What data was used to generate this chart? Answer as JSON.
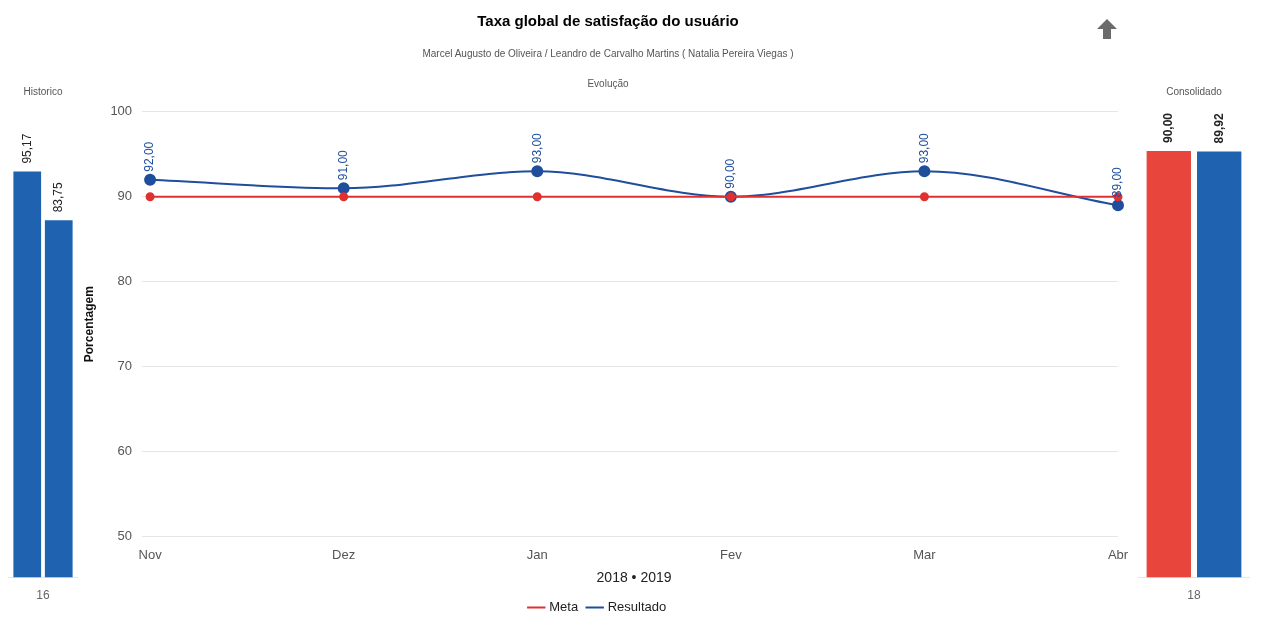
{
  "chart_data": [
    {
      "type": "bar",
      "title": "Historico",
      "categories": [
        "16"
      ],
      "series": [
        {
          "color": "#1f63b0",
          "values": [
            95.17
          ],
          "value_labels": [
            "95,17"
          ]
        },
        {
          "color": "#1f63b0",
          "values": [
            83.75
          ],
          "value_labels": [
            "83,75"
          ]
        }
      ]
    },
    {
      "type": "line",
      "title": "Taxa global de satisfação do usuário",
      "subtitle": "Marcel Augusto de Oliveira / Leandro de Carvalho Martins ( Natalia Pereira Viegas )",
      "annotations": [
        "Evolução"
      ],
      "xlabel": "2018 • 2019",
      "ylabel": "Porcentagem",
      "categories": [
        "Nov",
        "Dez",
        "Jan",
        "Fev",
        "Mar",
        "Abr"
      ],
      "ylim": [
        50,
        100
      ],
      "yticks": [
        50,
        60,
        70,
        80,
        90,
        100
      ],
      "grid": "y",
      "legend": "bottom",
      "marker": "circle",
      "series": [
        {
          "name": "Resultado",
          "color": "#1f4e9c",
          "values": [
            92,
            91,
            93,
            90,
            93,
            89
          ],
          "value_labels": [
            "92,00",
            "91,00",
            "93,00",
            "90,00",
            "93,00",
            "89,00"
          ]
        },
        {
          "name": "Meta",
          "color": "#e03030",
          "values": [
            90,
            90,
            90,
            90,
            90,
            90
          ]
        }
      ]
    },
    {
      "type": "bar",
      "title": "Consolidado",
      "categories": [
        "18"
      ],
      "series": [
        {
          "color": "#e8453c",
          "values": [
            90.0
          ],
          "value_labels": [
            "90,00"
          ]
        },
        {
          "color": "#1f63b0",
          "values": [
            89.92
          ],
          "value_labels": [
            "89,92"
          ]
        }
      ]
    }
  ]
}
